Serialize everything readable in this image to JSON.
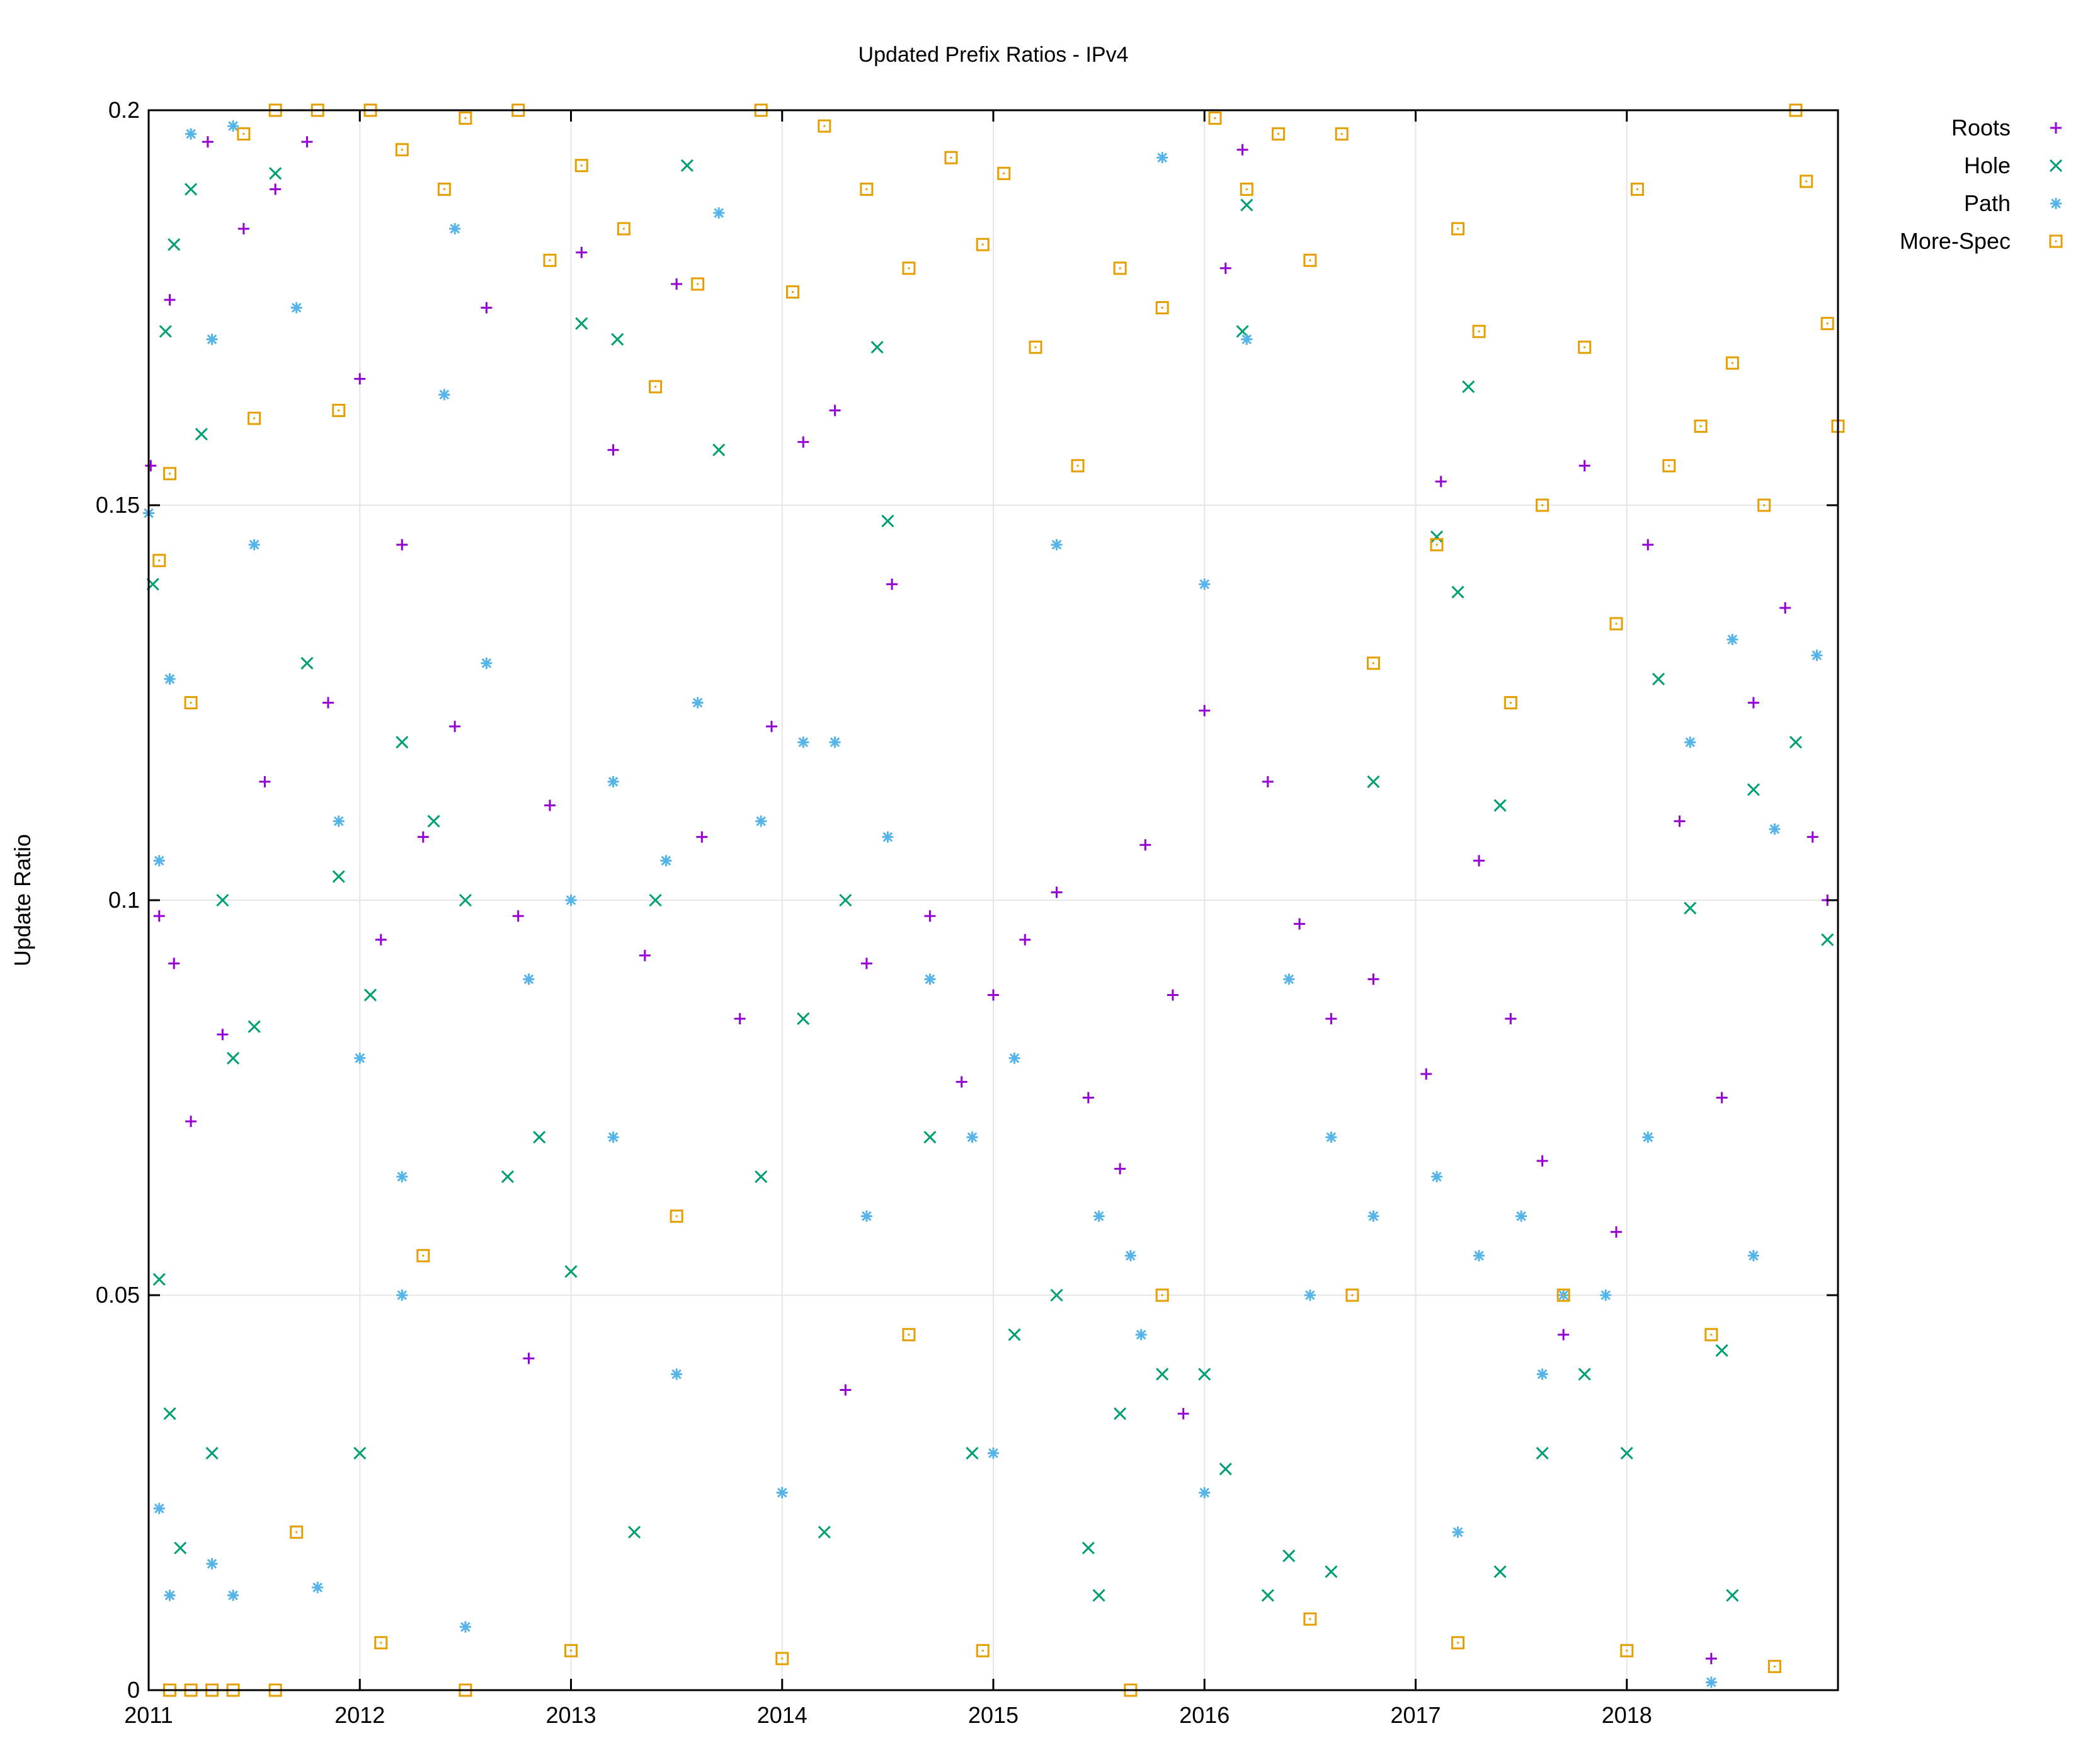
{
  "chart_data": {
    "type": "scatter",
    "title": "Updated Prefix Ratios - IPv4",
    "xlabel": "",
    "ylabel": "Update Ratio",
    "xlim": [
      2011.0,
      2019.0
    ],
    "ylim": [
      0,
      0.2
    ],
    "x_ticks": [
      "2011",
      "2012",
      "2013",
      "2014",
      "2015",
      "2016",
      "2017",
      "2018"
    ],
    "y_ticks": [
      "0",
      "0.05",
      "0.1",
      "0.15",
      "0.2"
    ],
    "grid": true,
    "legend_position": "top-right (outside plot)",
    "data_gap": [
      2016.88,
      2017.05
    ],
    "series": [
      {
        "name": "Roots",
        "marker": "plus",
        "color": "#9400d3",
        "points": [
          [
            2011.01,
            0.155
          ],
          [
            2011.05,
            0.098
          ],
          [
            2011.1,
            0.176
          ],
          [
            2011.12,
            0.092
          ],
          [
            2011.2,
            0.072
          ],
          [
            2011.28,
            0.196
          ],
          [
            2011.35,
            0.083
          ],
          [
            2011.45,
            0.185
          ],
          [
            2011.55,
            0.115
          ],
          [
            2011.6,
            0.19
          ],
          [
            2011.75,
            0.196
          ],
          [
            2011.85,
            0.125
          ],
          [
            2012.0,
            0.166
          ],
          [
            2012.1,
            0.095
          ],
          [
            2012.2,
            0.145
          ],
          [
            2012.3,
            0.108
          ],
          [
            2012.45,
            0.122
          ],
          [
            2012.6,
            0.175
          ],
          [
            2012.75,
            0.098
          ],
          [
            2012.9,
            0.112
          ],
          [
            2013.05,
            0.182
          ],
          [
            2013.2,
            0.157
          ],
          [
            2013.35,
            0.093
          ],
          [
            2013.5,
            0.178
          ],
          [
            2013.62,
            0.108
          ],
          [
            2013.8,
            0.085
          ],
          [
            2013.95,
            0.122
          ],
          [
            2014.1,
            0.158
          ],
          [
            2014.25,
            0.162
          ],
          [
            2014.4,
            0.092
          ],
          [
            2014.52,
            0.14
          ],
          [
            2014.7,
            0.098
          ],
          [
            2014.85,
            0.077
          ],
          [
            2015.0,
            0.088
          ],
          [
            2015.15,
            0.095
          ],
          [
            2015.3,
            0.101
          ],
          [
            2015.45,
            0.075
          ],
          [
            2015.6,
            0.066
          ],
          [
            2015.72,
            0.107
          ],
          [
            2015.85,
            0.088
          ],
          [
            2016.0,
            0.124
          ],
          [
            2016.1,
            0.18
          ],
          [
            2016.18,
            0.195
          ],
          [
            2016.3,
            0.115
          ],
          [
            2016.45,
            0.097
          ],
          [
            2016.6,
            0.085
          ],
          [
            2016.8,
            0.09
          ],
          [
            2017.05,
            0.078
          ],
          [
            2017.12,
            0.153
          ],
          [
            2017.3,
            0.105
          ],
          [
            2017.45,
            0.085
          ],
          [
            2017.6,
            0.067
          ],
          [
            2017.8,
            0.155
          ],
          [
            2017.95,
            0.058
          ],
          [
            2018.1,
            0.145
          ],
          [
            2018.25,
            0.11
          ],
          [
            2018.4,
            0.004
          ],
          [
            2018.45,
            0.075
          ],
          [
            2018.6,
            0.125
          ],
          [
            2018.75,
            0.137
          ],
          [
            2018.88,
            0.108
          ],
          [
            2018.95,
            0.1
          ],
          [
            2012.8,
            0.042
          ],
          [
            2014.3,
            0.038
          ],
          [
            2015.9,
            0.035
          ],
          [
            2017.7,
            0.045
          ]
        ]
      },
      {
        "name": "Hole",
        "marker": "cross",
        "color": "#009e73",
        "points": [
          [
            2011.02,
            0.14
          ],
          [
            2011.08,
            0.172
          ],
          [
            2011.12,
            0.183
          ],
          [
            2011.2,
            0.19
          ],
          [
            2011.25,
            0.159
          ],
          [
            2011.35,
            0.1
          ],
          [
            2011.5,
            0.084
          ],
          [
            2011.6,
            0.192
          ],
          [
            2011.75,
            0.13
          ],
          [
            2011.9,
            0.103
          ],
          [
            2012.05,
            0.088
          ],
          [
            2012.2,
            0.12
          ],
          [
            2012.35,
            0.11
          ],
          [
            2012.5,
            0.1
          ],
          [
            2012.7,
            0.065
          ],
          [
            2012.85,
            0.07
          ],
          [
            2013.0,
            0.053
          ],
          [
            2013.05,
            0.173
          ],
          [
            2013.22,
            0.171
          ],
          [
            2013.4,
            0.1
          ],
          [
            2013.55,
            0.193
          ],
          [
            2013.7,
            0.157
          ],
          [
            2013.9,
            0.065
          ],
          [
            2014.1,
            0.085
          ],
          [
            2014.3,
            0.1
          ],
          [
            2014.45,
            0.17
          ],
          [
            2014.5,
            0.148
          ],
          [
            2014.7,
            0.07
          ],
          [
            2014.9,
            0.03
          ],
          [
            2015.1,
            0.045
          ],
          [
            2015.3,
            0.05
          ],
          [
            2015.45,
            0.018
          ],
          [
            2015.6,
            0.035
          ],
          [
            2015.8,
            0.04
          ],
          [
            2016.0,
            0.04
          ],
          [
            2016.1,
            0.028
          ],
          [
            2016.18,
            0.172
          ],
          [
            2016.2,
            0.188
          ],
          [
            2016.4,
            0.017
          ],
          [
            2016.6,
            0.015
          ],
          [
            2016.8,
            0.115
          ],
          [
            2017.1,
            0.146
          ],
          [
            2017.2,
            0.139
          ],
          [
            2017.25,
            0.165
          ],
          [
            2017.4,
            0.112
          ],
          [
            2017.6,
            0.03
          ],
          [
            2017.8,
            0.04
          ],
          [
            2018.0,
            0.03
          ],
          [
            2018.15,
            0.128
          ],
          [
            2018.3,
            0.099
          ],
          [
            2018.45,
            0.043
          ],
          [
            2018.6,
            0.114
          ],
          [
            2018.8,
            0.12
          ],
          [
            2018.95,
            0.095
          ],
          [
            2011.05,
            0.052
          ],
          [
            2011.1,
            0.035
          ],
          [
            2011.15,
            0.018
          ],
          [
            2011.3,
            0.03
          ],
          [
            2011.4,
            0.08
          ],
          [
            2012.0,
            0.03
          ],
          [
            2013.3,
            0.02
          ],
          [
            2014.2,
            0.02
          ],
          [
            2015.5,
            0.012
          ],
          [
            2016.3,
            0.012
          ],
          [
            2017.4,
            0.015
          ],
          [
            2018.5,
            0.012
          ]
        ]
      },
      {
        "name": "Path",
        "marker": "star",
        "color": "#56b4e9",
        "points": [
          [
            2011.0,
            0.149
          ],
          [
            2011.05,
            0.105
          ],
          [
            2011.1,
            0.128
          ],
          [
            2011.2,
            0.197
          ],
          [
            2011.3,
            0.171
          ],
          [
            2011.4,
            0.198
          ],
          [
            2011.5,
            0.145
          ],
          [
            2011.7,
            0.175
          ],
          [
            2011.9,
            0.11
          ],
          [
            2012.0,
            0.08
          ],
          [
            2012.2,
            0.065
          ],
          [
            2012.4,
            0.164
          ],
          [
            2012.45,
            0.185
          ],
          [
            2012.6,
            0.13
          ],
          [
            2012.8,
            0.09
          ],
          [
            2013.0,
            0.1
          ],
          [
            2013.2,
            0.115
          ],
          [
            2013.45,
            0.105
          ],
          [
            2013.6,
            0.125
          ],
          [
            2013.7,
            0.187
          ],
          [
            2013.9,
            0.11
          ],
          [
            2014.1,
            0.12
          ],
          [
            2014.25,
            0.12
          ],
          [
            2014.5,
            0.108
          ],
          [
            2014.7,
            0.09
          ],
          [
            2014.9,
            0.07
          ],
          [
            2015.1,
            0.08
          ],
          [
            2015.3,
            0.145
          ],
          [
            2015.5,
            0.06
          ],
          [
            2015.65,
            0.055
          ],
          [
            2015.8,
            0.194
          ],
          [
            2016.0,
            0.14
          ],
          [
            2016.2,
            0.171
          ],
          [
            2016.4,
            0.09
          ],
          [
            2016.6,
            0.07
          ],
          [
            2016.8,
            0.06
          ],
          [
            2017.1,
            0.065
          ],
          [
            2017.3,
            0.055
          ],
          [
            2017.5,
            0.06
          ],
          [
            2017.7,
            0.05
          ],
          [
            2017.9,
            0.05
          ],
          [
            2018.1,
            0.07
          ],
          [
            2018.3,
            0.12
          ],
          [
            2018.5,
            0.133
          ],
          [
            2018.7,
            0.109
          ],
          [
            2018.9,
            0.131
          ],
          [
            2011.05,
            0.023
          ],
          [
            2011.1,
            0.012
          ],
          [
            2011.3,
            0.016
          ],
          [
            2011.4,
            0.012
          ],
          [
            2011.8,
            0.013
          ],
          [
            2012.5,
            0.008
          ],
          [
            2013.5,
            0.04
          ],
          [
            2014.0,
            0.025
          ],
          [
            2015.0,
            0.03
          ],
          [
            2016.0,
            0.025
          ],
          [
            2017.2,
            0.02
          ],
          [
            2018.4,
            0.001
          ],
          [
            2012.2,
            0.05
          ],
          [
            2013.2,
            0.07
          ],
          [
            2014.4,
            0.06
          ],
          [
            2015.7,
            0.045
          ],
          [
            2016.5,
            0.05
          ],
          [
            2017.6,
            0.04
          ],
          [
            2018.6,
            0.055
          ]
        ]
      },
      {
        "name": "More-Spec",
        "marker": "square",
        "color": "#e69f00",
        "points": [
          [
            2011.05,
            0.143
          ],
          [
            2011.1,
            0.154
          ],
          [
            2011.2,
            0.125
          ],
          [
            2011.45,
            0.197
          ],
          [
            2011.5,
            0.161
          ],
          [
            2011.6,
            0.2
          ],
          [
            2011.8,
            0.2
          ],
          [
            2011.9,
            0.162
          ],
          [
            2012.05,
            0.2
          ],
          [
            2012.2,
            0.195
          ],
          [
            2012.4,
            0.19
          ],
          [
            2012.5,
            0.199
          ],
          [
            2012.75,
            0.2
          ],
          [
            2012.9,
            0.181
          ],
          [
            2013.05,
            0.193
          ],
          [
            2013.25,
            0.185
          ],
          [
            2013.4,
            0.165
          ],
          [
            2013.6,
            0.178
          ],
          [
            2013.9,
            0.2
          ],
          [
            2014.05,
            0.177
          ],
          [
            2014.2,
            0.198
          ],
          [
            2014.4,
            0.19
          ],
          [
            2014.6,
            0.18
          ],
          [
            2014.8,
            0.194
          ],
          [
            2014.95,
            0.183
          ],
          [
            2015.05,
            0.192
          ],
          [
            2015.2,
            0.17
          ],
          [
            2015.4,
            0.155
          ],
          [
            2015.6,
            0.18
          ],
          [
            2015.8,
            0.175
          ],
          [
            2016.05,
            0.199
          ],
          [
            2016.2,
            0.19
          ],
          [
            2016.35,
            0.197
          ],
          [
            2016.5,
            0.181
          ],
          [
            2016.65,
            0.197
          ],
          [
            2016.8,
            0.13
          ],
          [
            2017.1,
            0.145
          ],
          [
            2017.2,
            0.185
          ],
          [
            2017.3,
            0.172
          ],
          [
            2017.45,
            0.125
          ],
          [
            2017.6,
            0.15
          ],
          [
            2017.8,
            0.17
          ],
          [
            2017.95,
            0.135
          ],
          [
            2018.05,
            0.19
          ],
          [
            2018.2,
            0.155
          ],
          [
            2018.35,
            0.16
          ],
          [
            2018.5,
            0.168
          ],
          [
            2018.65,
            0.15
          ],
          [
            2018.8,
            0.2
          ],
          [
            2018.85,
            0.191
          ],
          [
            2018.95,
            0.173
          ],
          [
            2019.0,
            0.16
          ],
          [
            2011.1,
            0.0
          ],
          [
            2011.2,
            0.0
          ],
          [
            2011.3,
            0.0
          ],
          [
            2011.4,
            0.0
          ],
          [
            2011.6,
            0.0
          ],
          [
            2012.5,
            0.0
          ],
          [
            2015.65,
            0.0
          ],
          [
            2011.7,
            0.02
          ],
          [
            2012.1,
            0.006
          ],
          [
            2013.0,
            0.005
          ],
          [
            2014.0,
            0.004
          ],
          [
            2014.95,
            0.005
          ],
          [
            2016.5,
            0.009
          ],
          [
            2017.2,
            0.006
          ],
          [
            2018.0,
            0.005
          ],
          [
            2018.7,
            0.003
          ],
          [
            2012.3,
            0.055
          ],
          [
            2013.5,
            0.06
          ],
          [
            2014.6,
            0.045
          ],
          [
            2015.8,
            0.05
          ],
          [
            2016.7,
            0.05
          ],
          [
            2017.7,
            0.05
          ],
          [
            2018.4,
            0.045
          ]
        ]
      }
    ]
  }
}
